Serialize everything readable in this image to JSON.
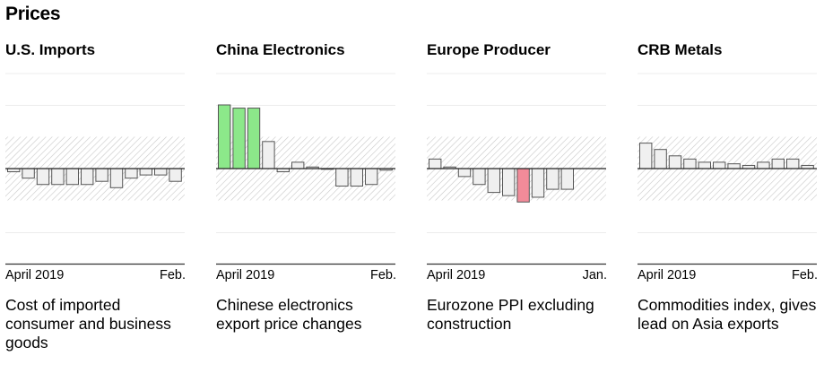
{
  "page_title": "Prices",
  "chart_data": [
    {
      "type": "bar",
      "title": "U.S. Imports",
      "x_start_label": "April 2019",
      "x_end_label": "Feb.",
      "description": "Cost of imported consumer and business goods",
      "values": [
        -0.1,
        -0.3,
        -0.5,
        -0.5,
        -0.5,
        -0.5,
        -0.4,
        -0.6,
        -0.3,
        -0.2,
        -0.2,
        -0.4
      ],
      "highlight_colors": [
        "#f0f0f0",
        "#f0f0f0",
        "#f0f0f0",
        "#f0f0f0",
        "#f0f0f0",
        "#f0f0f0",
        "#f0f0f0",
        "#f0f0f0",
        "#f0f0f0",
        "#f0f0f0",
        "#f0f0f0",
        "#f0f0f0"
      ],
      "band": [
        -1,
        1
      ],
      "ylim": [
        -2,
        3
      ]
    },
    {
      "type": "bar",
      "title": "China Electronics",
      "x_start_label": "April 2019",
      "x_end_label": "Feb.",
      "description": "Chinese electronics export price changes",
      "values": [
        2.0,
        1.9,
        1.9,
        0.85,
        -0.1,
        0.2,
        0.05,
        0.0,
        -0.55,
        -0.55,
        -0.5,
        -0.05
      ],
      "highlight_colors": [
        "#8ce88a",
        "#8ce88a",
        "#8ce88a",
        "#f0f0f0",
        "#f0f0f0",
        "#f0f0f0",
        "#f0f0f0",
        "#f0f0f0",
        "#f0f0f0",
        "#f0f0f0",
        "#f0f0f0",
        "#f0f0f0"
      ],
      "band": [
        -1,
        1
      ],
      "ylim": [
        -2,
        3
      ]
    },
    {
      "type": "bar",
      "title": "Europe Producer",
      "x_start_label": "April 2019",
      "x_end_label": "Jan.",
      "description": "Eurozone PPI excluding construction",
      "values": [
        0.3,
        0.05,
        -0.25,
        -0.5,
        -0.75,
        -0.85,
        -1.05,
        -0.9,
        -0.65,
        -0.65
      ],
      "highlight_colors": [
        "#f0f0f0",
        "#f0f0f0",
        "#f0f0f0",
        "#f0f0f0",
        "#f0f0f0",
        "#f0f0f0",
        "#f28b99",
        "#f0f0f0",
        "#f0f0f0",
        "#f0f0f0"
      ],
      "band": [
        -1,
        1
      ],
      "ylim": [
        -2,
        3
      ]
    },
    {
      "type": "bar",
      "title": "CRB Metals",
      "x_start_label": "April 2019",
      "x_end_label": "Feb.",
      "description": "Commodities index, gives lead on Asia exports",
      "values": [
        0.8,
        0.6,
        0.4,
        0.3,
        0.2,
        0.2,
        0.15,
        0.1,
        0.2,
        0.3,
        0.3,
        0.1
      ],
      "highlight_colors": [
        "#f0f0f0",
        "#f0f0f0",
        "#f0f0f0",
        "#f0f0f0",
        "#f0f0f0",
        "#f0f0f0",
        "#f0f0f0",
        "#f0f0f0",
        "#f0f0f0",
        "#f0f0f0",
        "#f0f0f0",
        "#f0f0f0"
      ],
      "band": [
        -1,
        1
      ],
      "ylim": [
        -2,
        3
      ]
    }
  ]
}
